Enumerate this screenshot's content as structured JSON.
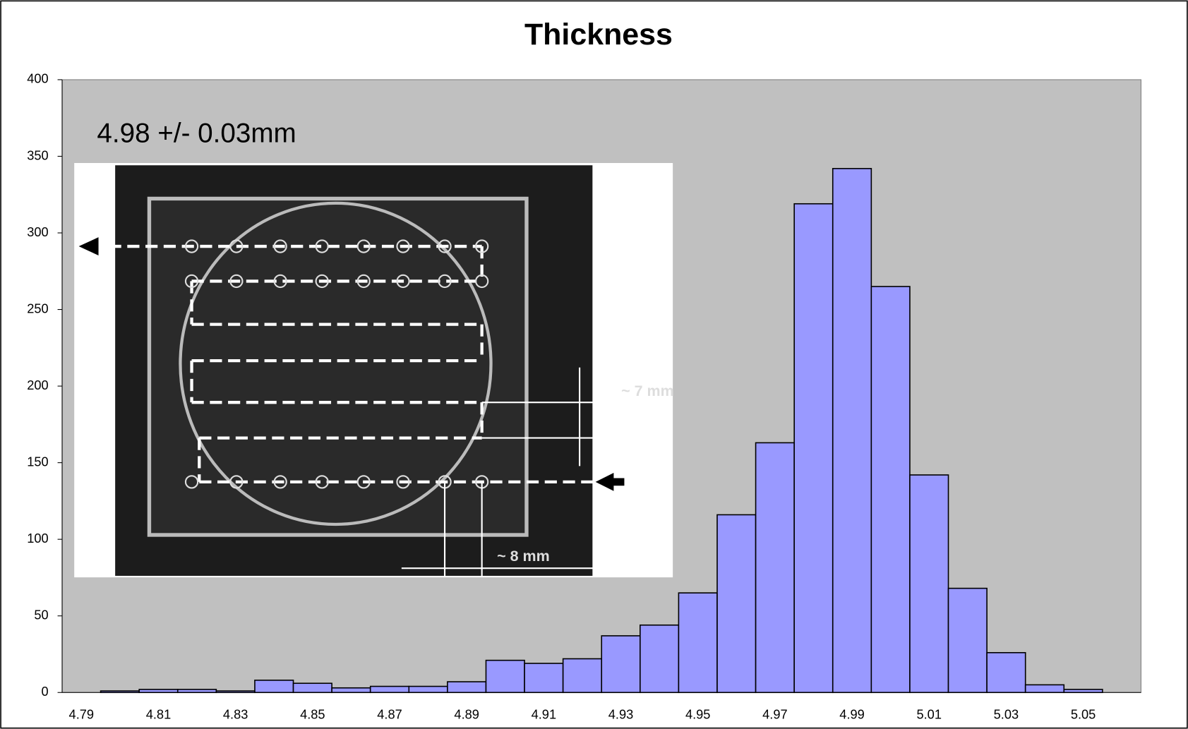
{
  "chart_data": {
    "type": "bar",
    "title": "Thickness",
    "annotations": [
      "4.98 +/- 0.03mm",
      "~ 7 mm",
      "~ 8 mm"
    ],
    "categories": [
      "4.79",
      null,
      "4.81",
      null,
      "4.83",
      null,
      "4.85",
      null,
      "4.87",
      null,
      "4.89",
      null,
      "4.91",
      null,
      "4.93",
      null,
      "4.95",
      null,
      "4.97",
      null,
      "4.99",
      null,
      "5.01",
      null,
      "5.03",
      null,
      "5.05",
      null
    ],
    "values": [
      0,
      1,
      2,
      2,
      1,
      8,
      6,
      3,
      4,
      4,
      7,
      21,
      19,
      22,
      37,
      44,
      65,
      116,
      163,
      319,
      342,
      265,
      142,
      68,
      26,
      5,
      2,
      0
    ],
    "color": "#9999ff",
    "ylim": [
      0,
      400
    ],
    "yticks": [
      0,
      50,
      100,
      150,
      200,
      250,
      300,
      350,
      400
    ],
    "grid": false
  }
}
